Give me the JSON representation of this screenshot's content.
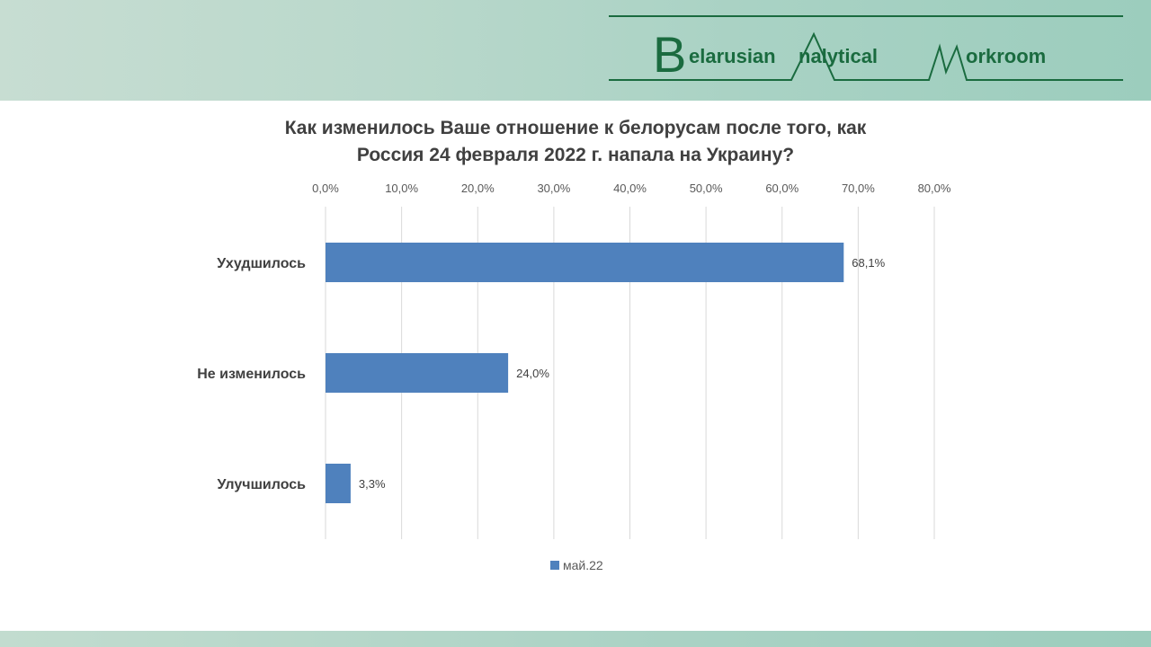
{
  "brand": {
    "logo_text": "Belarusian Analytical Workroom",
    "color": "#1a6b3f"
  },
  "chart_data": {
    "type": "bar",
    "orientation": "horizontal",
    "title_lines": [
      "Как изменилось Ваше отношение к белорусам после того, как",
      "Россия 24 февраля 2022 г. напала на Украину?"
    ],
    "categories": [
      "Ухудшилось",
      "Не изменилось",
      "Улучшилось"
    ],
    "series": [
      {
        "name": "май.22",
        "values": [
          68.1,
          24.0,
          3.3
        ],
        "color": "#4f81bd"
      }
    ],
    "data_labels": [
      "68,1%",
      "24,0%",
      "3,3%"
    ],
    "x_ticks": [
      "0,0%",
      "10,0%",
      "20,0%",
      "30,0%",
      "40,0%",
      "50,0%",
      "60,0%",
      "70,0%",
      "80,0%"
    ],
    "xlim": [
      0,
      80
    ],
    "x_axis_position": "top",
    "grid": true,
    "legend_position": "bottom"
  }
}
